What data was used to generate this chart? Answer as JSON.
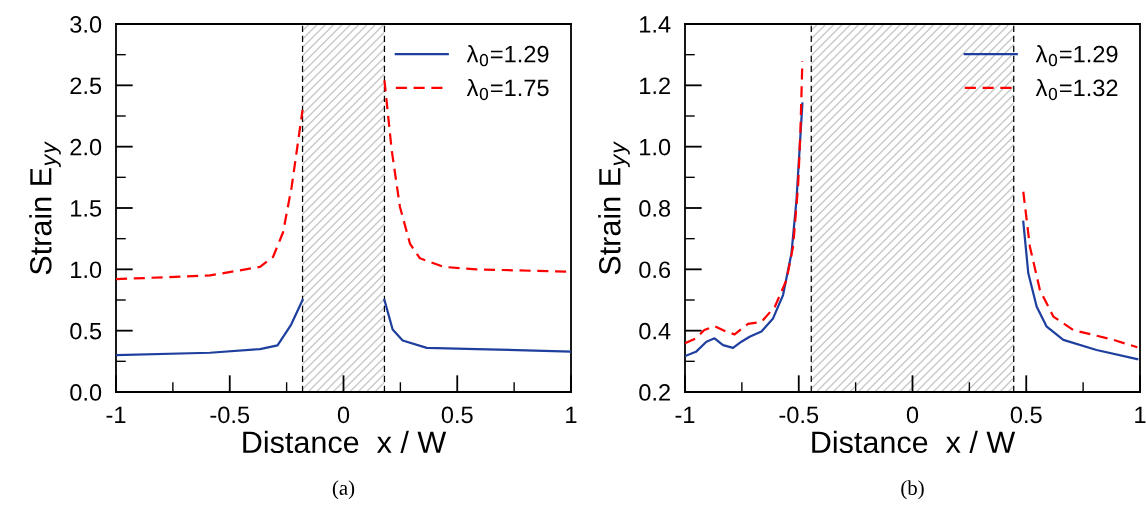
{
  "chart_data": [
    {
      "type": "line",
      "xlabel": "Distance  x / W",
      "ylabel": "Strain E$_{yy}$",
      "annotations": [
        "(a)"
      ],
      "xlim": [
        -1,
        1
      ],
      "ylim": [
        0,
        3
      ],
      "xticks": [
        -1,
        -0.5,
        0,
        0.5,
        1
      ],
      "yticks": [
        {
          "value": 0,
          "label": "0.0"
        },
        0.5,
        {
          "value": 1,
          "label": "1.0"
        },
        1.5,
        {
          "value": 2,
          "label": "2.0"
        },
        2.5,
        {
          "value": 3,
          "label": "3.0"
        }
      ],
      "grid": false,
      "legend": "top right",
      "bands": [
        {
          "axis": "x",
          "from": -0.18,
          "to": 0.18,
          "color": "#c8c8c8"
        }
      ],
      "ref_lines": [
        {
          "axis": "x",
          "value": -0.18,
          "color": "#000000",
          "line_style": "dashed"
        },
        {
          "axis": "x",
          "value": 0.18,
          "color": "#000000",
          "line_style": "dashed"
        }
      ],
      "series": [
        {
          "name": "λ$_{0}$=1.29",
          "color": "#1f3f9f",
          "line_style": "solid",
          "x": [
            -1,
            -0.587,
            -0.367,
            -0.29,
            -0.23,
            -0.18,
            null,
            0.18,
            0.216,
            0.26,
            0.366,
            0.585,
            1
          ],
          "values": [
            0.3,
            0.32,
            0.35,
            0.38,
            0.55,
            0.75,
            null,
            0.75,
            0.51,
            0.42,
            0.36,
            0.35,
            0.33
          ]
        },
        {
          "name": "λ$_{0}$=1.75",
          "color": "#ff0000",
          "line_style": "dashed",
          "x": [
            -1,
            -0.587,
            -0.367,
            -0.31,
            -0.266,
            -0.228,
            -0.18,
            null,
            0.18,
            0.212,
            0.248,
            0.292,
            0.336,
            0.44,
            0.585,
            1
          ],
          "values": [
            0.92,
            0.95,
            1.02,
            1.1,
            1.3,
            1.67,
            2.3,
            null,
            2.54,
            1.97,
            1.51,
            1.21,
            1.09,
            1.02,
            1.0,
            0.98
          ]
        }
      ]
    },
    {
      "type": "line",
      "xlabel": "Distance  x / W",
      "ylabel": "Strain E$_{yy}$",
      "annotations": [
        "(b)"
      ],
      "xlim": [
        -1,
        1
      ],
      "ylim": [
        0.2,
        1.4
      ],
      "xticks": [
        -1,
        -0.5,
        0,
        0.5,
        1
      ],
      "yticks": [
        0.2,
        0.4,
        0.6,
        0.8,
        {
          "value": 1,
          "label": "1.0"
        },
        1.2,
        1.4
      ],
      "grid": false,
      "legend": "top right",
      "bands": [
        {
          "axis": "x",
          "from": -0.445,
          "to": 0.445,
          "color": "#c8c8c8"
        }
      ],
      "ref_lines": [
        {
          "axis": "x",
          "value": -0.445,
          "color": "#000000",
          "line_style": "dashed"
        },
        {
          "axis": "x",
          "value": 0.445,
          "color": "#000000",
          "line_style": "dashed"
        }
      ],
      "series": [
        {
          "name": "λ$_{0}$=1.29",
          "color": "#1f3f9f",
          "line_style": "solid",
          "x": [
            -1,
            -0.952,
            -0.906,
            -0.87,
            -0.833,
            -0.789,
            -0.752,
            -0.716,
            -0.664,
            -0.613,
            -0.569,
            -0.532,
            -0.51,
            -0.484,
            null,
            0.487,
            0.509,
            0.546,
            0.59,
            0.663,
            0.809,
            0.988
          ],
          "values": [
            0.317,
            0.331,
            0.364,
            0.375,
            0.353,
            0.344,
            0.364,
            0.38,
            0.397,
            0.44,
            0.516,
            0.652,
            0.826,
            1.141,
            null,
            0.755,
            0.587,
            0.478,
            0.413,
            0.37,
            0.337,
            0.307
          ]
        },
        {
          "name": "λ$_{0}$=1.32",
          "color": "#ff0000",
          "line_style": "dashed",
          "x": [
            -1,
            -0.952,
            -0.915,
            -0.87,
            -0.819,
            -0.782,
            -0.723,
            -0.664,
            -0.605,
            -0.554,
            -0.525,
            -0.503,
            -0.493,
            -0.484,
            null,
            0.487,
            0.516,
            0.56,
            0.619,
            0.707,
            0.883,
            0.988
          ],
          "values": [
            0.359,
            0.375,
            0.402,
            0.415,
            0.397,
            0.388,
            0.422,
            0.429,
            0.478,
            0.565,
            0.674,
            0.87,
            1.043,
            1.279,
            null,
            0.853,
            0.674,
            0.533,
            0.446,
            0.402,
            0.37,
            0.346
          ]
        }
      ]
    }
  ]
}
